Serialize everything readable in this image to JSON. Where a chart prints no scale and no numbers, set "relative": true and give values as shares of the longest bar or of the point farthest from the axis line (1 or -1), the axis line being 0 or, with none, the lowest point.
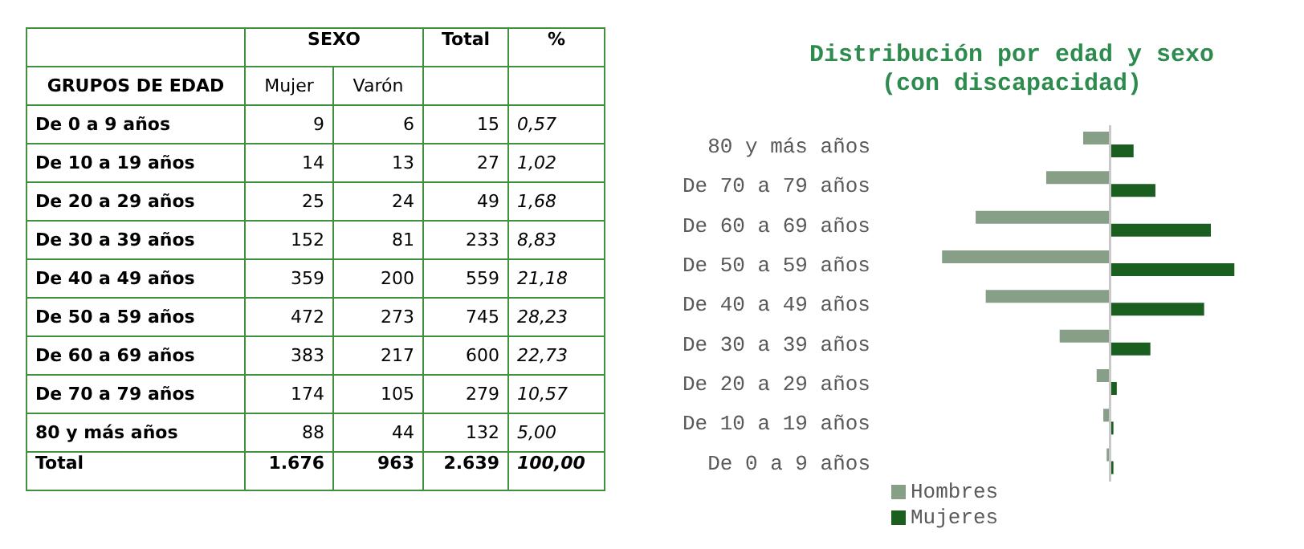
{
  "chart_data": [
    {
      "type": "other",
      "annotations": [
        "SEXO",
        "Total",
        "%",
        "GRUPOS DE EDAD",
        "Mujer",
        "Varón",
        "De 0 a 9 años",
        "9",
        "6",
        "15",
        "0,57",
        "De 10 a 19 años",
        "14",
        "13",
        "27",
        "1,02",
        "De 20 a 29 años",
        "25",
        "24",
        "49",
        "1,68",
        "De 30 a 39 años",
        "152",
        "81",
        "233",
        "8,83",
        "De 40 a 49 años",
        "359",
        "200",
        "559",
        "21,18",
        "De 50 a 59 años",
        "472",
        "273",
        "745",
        "28,23",
        "De 60 a 69 años",
        "383",
        "217",
        "600",
        "22,73",
        "De 70 a 79 años",
        "174",
        "105",
        "279",
        "10,57",
        "80 y más años",
        "88",
        "44",
        "132",
        "5,00",
        "Total",
        "1.676",
        "963",
        "2.639",
        "100,00"
      ]
    },
    {
      "type": "bar",
      "orientation": "horizontal",
      "relative": true,
      "title": "Distribución por edad y sexo\n(con discapacidad)",
      "categories": [
        "80 y más años",
        "De 70 a 79 años",
        "De 60 a 69 años",
        "De 50 a 59 años",
        "De 40 a 49 años",
        "De 30 a 39 años",
        "De 20 a 29 años",
        "De 10 a 19 años",
        "De 0 a 9 años"
      ],
      "series": [
        {
          "name": "Hombres",
          "color": "#879e87",
          "values": [
            -0.16,
            -0.38,
            -0.8,
            -1,
            -0.74,
            -0.3,
            -0.08,
            -0.04,
            -0.02
          ]
        },
        {
          "name": "Mujeres",
          "color": "#1a5e20",
          "values": [
            0.14,
            0.27,
            0.6,
            0.74,
            0.56,
            0.24,
            0.04,
            0.02,
            0.02
          ]
        }
      ],
      "legend": "bottom left"
    }
  ]
}
